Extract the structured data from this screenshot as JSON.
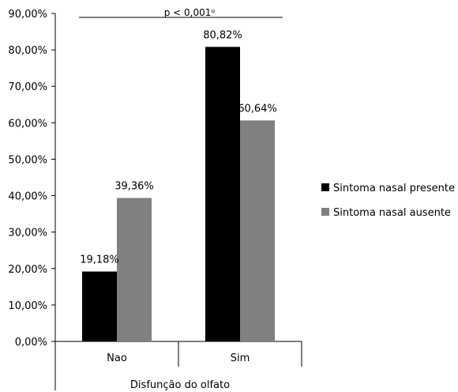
{
  "chart_data": {
    "type": "bar",
    "categories": [
      "Nao",
      "Sim"
    ],
    "series": [
      {
        "name": "Sintoma nasal presente",
        "color": "#000000",
        "values": [
          19.18,
          80.82
        ],
        "labels": [
          "19,18%",
          "80,82%"
        ]
      },
      {
        "name": "Sintoma nasal ausente",
        "color": "#808080",
        "values": [
          39.36,
          60.64
        ],
        "labels": [
          "39,36%",
          "60,64%"
        ]
      }
    ],
    "ylim": [
      0,
      90
    ],
    "yticks": [
      0,
      10,
      20,
      30,
      40,
      50,
      60,
      70,
      80,
      90
    ],
    "ytick_labels": [
      "0,00%",
      "10,00%",
      "20,00%",
      "30,00%",
      "40,00%",
      "50,00%",
      "60,00%",
      "70,00%",
      "80,00%",
      "90,00%"
    ],
    "xlabel": "Disfunção do olfato",
    "ylabel": "",
    "legend_position": "right",
    "grid": false,
    "annotation": "p < 0,001ᵅ"
  }
}
